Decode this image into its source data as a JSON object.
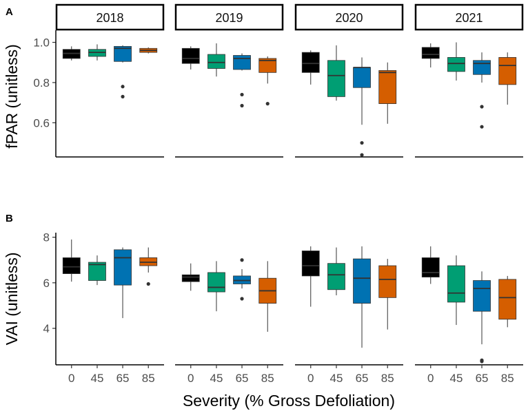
{
  "figure": {
    "x_axis_title": "Severity (% Gross Defoliation)",
    "colors": {
      "0": "#000000",
      "45": "#009E73",
      "65": "#0072B2",
      "85": "#D55E00"
    }
  },
  "chart_data": [
    {
      "type": "boxplot",
      "panel_label": "A",
      "ylabel": "fPAR (unitless)",
      "ylim": [
        0.43,
        1.06
      ],
      "yticks": [
        0.6,
        0.8,
        1.0
      ],
      "ytick_labels": [
        "0.6",
        "0.8",
        "1.0"
      ],
      "categories": [
        "0",
        "45",
        "65",
        "85"
      ],
      "facets": [
        {
          "name": "2018",
          "boxes": [
            {
              "category": "0",
              "whisker_low": 0.91,
              "q1": 0.92,
              "median": 0.945,
              "q3": 0.965,
              "whisker_high": 0.98,
              "outliers": []
            },
            {
              "category": "45",
              "whisker_low": 0.91,
              "q1": 0.93,
              "median": 0.95,
              "q3": 0.965,
              "whisker_high": 0.99,
              "outliers": []
            },
            {
              "category": "65",
              "whisker_low": 0.9,
              "q1": 0.905,
              "median": 0.97,
              "q3": 0.98,
              "whisker_high": 0.985,
              "outliers": [
                0.78,
                0.73
              ]
            },
            {
              "category": "85",
              "whisker_low": 0.945,
              "q1": 0.95,
              "median": 0.96,
              "q3": 0.97,
              "whisker_high": 0.975,
              "outliers": []
            }
          ]
        },
        {
          "name": "2019",
          "boxes": [
            {
              "category": "0",
              "whisker_low": 0.865,
              "q1": 0.895,
              "median": 0.92,
              "q3": 0.97,
              "whisker_high": 0.98,
              "outliers": []
            },
            {
              "category": "45",
              "whisker_low": 0.83,
              "q1": 0.87,
              "median": 0.9,
              "q3": 0.94,
              "whisker_high": 0.995,
              "outliers": []
            },
            {
              "category": "65",
              "whisker_low": 0.86,
              "q1": 0.865,
              "median": 0.92,
              "q3": 0.935,
              "whisker_high": 0.945,
              "outliers": [
                0.74,
                0.685
              ]
            },
            {
              "category": "85",
              "whisker_low": 0.795,
              "q1": 0.85,
              "median": 0.91,
              "q3": 0.92,
              "whisker_high": 0.93,
              "outliers": [
                0.695
              ]
            }
          ]
        },
        {
          "name": "2020",
          "boxes": [
            {
              "category": "0",
              "whisker_low": 0.79,
              "q1": 0.85,
              "median": 0.895,
              "q3": 0.95,
              "whisker_high": 0.96,
              "outliers": []
            },
            {
              "category": "45",
              "whisker_low": 0.71,
              "q1": 0.73,
              "median": 0.835,
              "q3": 0.91,
              "whisker_high": 0.985,
              "outliers": []
            },
            {
              "category": "65",
              "whisker_low": 0.59,
              "q1": 0.775,
              "median": 0.875,
              "q3": 0.875,
              "whisker_high": 0.925,
              "outliers": [
                0.5,
                0.44
              ]
            },
            {
              "category": "85",
              "whisker_low": 0.595,
              "q1": 0.695,
              "median": 0.85,
              "q3": 0.86,
              "whisker_high": 0.9,
              "outliers": []
            }
          ]
        },
        {
          "name": "2021",
          "boxes": [
            {
              "category": "0",
              "whisker_low": 0.875,
              "q1": 0.92,
              "median": 0.94,
              "q3": 0.975,
              "whisker_high": 0.995,
              "outliers": []
            },
            {
              "category": "45",
              "whisker_low": 0.81,
              "q1": 0.855,
              "median": 0.895,
              "q3": 0.925,
              "whisker_high": 1.0,
              "outliers": []
            },
            {
              "category": "65",
              "whisker_low": 0.8,
              "q1": 0.84,
              "median": 0.895,
              "q3": 0.91,
              "whisker_high": 0.95,
              "outliers": [
                0.68,
                0.58
              ]
            },
            {
              "category": "85",
              "whisker_low": 0.69,
              "q1": 0.79,
              "median": 0.885,
              "q3": 0.925,
              "whisker_high": 0.95,
              "outliers": []
            }
          ]
        }
      ]
    },
    {
      "type": "boxplot",
      "panel_label": "B",
      "ylabel": "VAI (unitless)",
      "ylim": [
        2.4,
        8.2
      ],
      "yticks": [
        4,
        6,
        8
      ],
      "ytick_labels": [
        "4",
        "6",
        "8"
      ],
      "categories": [
        "0",
        "45",
        "65",
        "85"
      ],
      "facets": [
        {
          "name": "2018",
          "boxes": [
            {
              "category": "0",
              "whisker_low": 6.05,
              "q1": 6.4,
              "median": 6.7,
              "q3": 7.1,
              "whisker_high": 7.9,
              "outliers": []
            },
            {
              "category": "45",
              "whisker_low": 5.9,
              "q1": 6.1,
              "median": 6.8,
              "q3": 6.9,
              "whisker_high": 7.2,
              "outliers": []
            },
            {
              "category": "65",
              "whisker_low": 4.45,
              "q1": 5.9,
              "median": 7.1,
              "q3": 7.45,
              "whisker_high": 7.55,
              "outliers": []
            },
            {
              "category": "85",
              "whisker_low": 6.45,
              "q1": 6.75,
              "median": 6.9,
              "q3": 7.1,
              "whisker_high": 7.55,
              "outliers": [
                5.95
              ]
            }
          ]
        },
        {
          "name": "2019",
          "boxes": [
            {
              "category": "0",
              "whisker_low": 5.65,
              "q1": 6.05,
              "median": 6.25,
              "q3": 6.35,
              "whisker_high": 6.85,
              "outliers": []
            },
            {
              "category": "45",
              "whisker_low": 4.75,
              "q1": 5.6,
              "median": 5.8,
              "q3": 6.45,
              "whisker_high": 6.95,
              "outliers": []
            },
            {
              "category": "65",
              "whisker_low": 5.75,
              "q1": 5.95,
              "median": 6.1,
              "q3": 6.3,
              "whisker_high": 6.6,
              "outliers": [
                7.0,
                5.3
              ]
            },
            {
              "category": "85",
              "whisker_low": 3.85,
              "q1": 5.1,
              "median": 5.65,
              "q3": 6.2,
              "whisker_high": 6.95,
              "outliers": []
            }
          ]
        },
        {
          "name": "2020",
          "boxes": [
            {
              "category": "0",
              "whisker_low": 4.95,
              "q1": 6.3,
              "median": 6.75,
              "q3": 7.4,
              "whisker_high": 7.6,
              "outliers": []
            },
            {
              "category": "45",
              "whisker_low": 5.45,
              "q1": 5.7,
              "median": 6.35,
              "q3": 6.85,
              "whisker_high": 7.55,
              "outliers": []
            },
            {
              "category": "65",
              "whisker_low": 3.15,
              "q1": 5.1,
              "median": 6.2,
              "q3": 7.05,
              "whisker_high": 7.6,
              "outliers": []
            },
            {
              "category": "85",
              "whisker_low": 3.95,
              "q1": 5.35,
              "median": 6.15,
              "q3": 6.75,
              "whisker_high": 7.05,
              "outliers": []
            }
          ]
        },
        {
          "name": "2021",
          "boxes": [
            {
              "category": "0",
              "whisker_low": 5.95,
              "q1": 6.25,
              "median": 6.45,
              "q3": 7.1,
              "whisker_high": 7.6,
              "outliers": []
            },
            {
              "category": "45",
              "whisker_low": 4.15,
              "q1": 5.15,
              "median": 5.55,
              "q3": 6.75,
              "whisker_high": 7.2,
              "outliers": []
            },
            {
              "category": "65",
              "whisker_low": 3.3,
              "q1": 4.75,
              "median": 5.75,
              "q3": 6.1,
              "whisker_high": 6.5,
              "outliers": [
                2.6,
                2.55
              ]
            },
            {
              "category": "85",
              "whisker_low": 4.05,
              "q1": 4.4,
              "median": 5.35,
              "q3": 6.15,
              "whisker_high": 6.3,
              "outliers": []
            }
          ]
        }
      ]
    }
  ]
}
